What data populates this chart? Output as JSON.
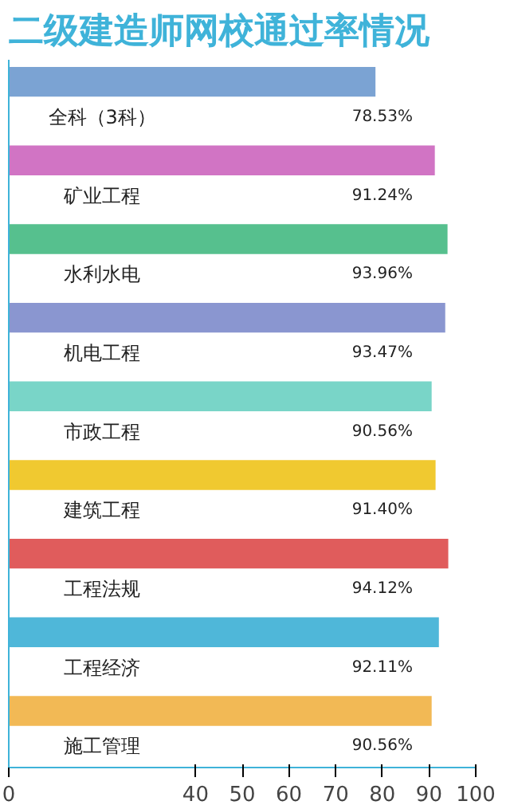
{
  "chart_data": {
    "type": "bar",
    "orientation": "horizontal",
    "title": "二级建造师网校通过率情况",
    "categories": [
      "全科（3科）",
      "矿业工程",
      "水利水电",
      "机电工程",
      "市政工程",
      "建筑工程",
      "工程法规",
      "工程经济",
      "施工管理"
    ],
    "values": [
      78.53,
      91.24,
      93.96,
      93.47,
      90.56,
      91.4,
      94.12,
      92.11,
      90.56
    ],
    "value_labels": [
      "78.53%",
      "91.24%",
      "93.96%",
      "93.47%",
      "90.56%",
      "91.40%",
      "94.12%",
      "92.11%",
      "90.56%"
    ],
    "colors": [
      "#7ba3d3",
      "#d174c4",
      "#56c08e",
      "#8a96d0",
      "#79d5c8",
      "#f0c930",
      "#e05c5c",
      "#4fb7d9",
      "#f2b955"
    ],
    "xlim": [
      0,
      100
    ],
    "xticks": [
      0,
      40,
      50,
      60,
      70,
      80,
      90,
      100
    ],
    "tick_labels": "x",
    "grid": false
  }
}
